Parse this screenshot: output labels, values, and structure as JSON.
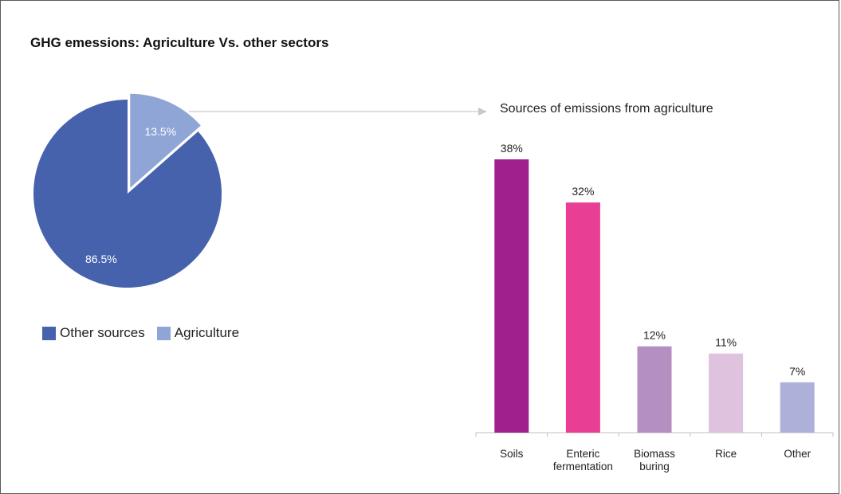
{
  "page_title": "GHG emessions: Agriculture Vs. other sectors",
  "colors": {
    "other_sources": "#4662ad",
    "agriculture": "#8ea5d6",
    "arrow": "#c9c9c9"
  },
  "chart_data": [
    {
      "type": "pie",
      "title": "",
      "slices": [
        {
          "label": "Other sources",
          "value": 86.5,
          "display": "86.5%",
          "color": "#4662ad"
        },
        {
          "label": "Agriculture",
          "value": 13.5,
          "display": "13.5%",
          "color": "#8ea5d6",
          "exploded": true
        }
      ],
      "legend": {
        "placement": "bottom-left",
        "entries": [
          "Other sources",
          "Agriculture"
        ]
      }
    },
    {
      "type": "bar",
      "title": "Sources of emissions from agriculture",
      "categories": [
        [
          "Soils"
        ],
        [
          "Enteric",
          "fermentation"
        ],
        [
          "Biomass",
          "buring"
        ],
        [
          "Rice"
        ],
        [
          "Other"
        ]
      ],
      "values": [
        38,
        32,
        12,
        11,
        7
      ],
      "value_labels": [
        "38%",
        "32%",
        "12%",
        "11%",
        "7%"
      ],
      "colors": [
        "#a0208d",
        "#e83f95",
        "#b38fc2",
        "#dec2de",
        "#adb1da"
      ],
      "ylim": [
        0,
        38
      ],
      "grid": false,
      "xlabel": "",
      "ylabel": ""
    }
  ]
}
